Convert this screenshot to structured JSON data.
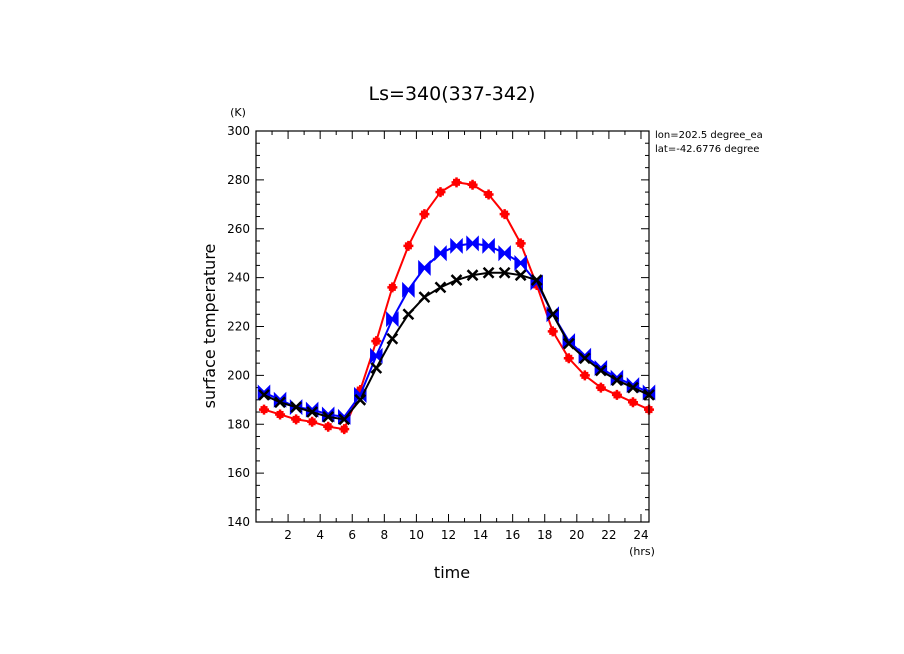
{
  "chart_data": {
    "type": "line",
    "title": "Ls=340(337-342)",
    "xlabel": "time",
    "xunit": "(hrs)",
    "ylabel": "surface temperature",
    "yunit": "(K)",
    "xlim": [
      0,
      24.5
    ],
    "ylim": [
      140,
      300
    ],
    "xticks": [
      2,
      4,
      6,
      8,
      10,
      12,
      14,
      16,
      18,
      20,
      22,
      24
    ],
    "yticks": [
      140,
      160,
      180,
      200,
      220,
      240,
      260,
      280,
      300
    ],
    "annotations": [
      "lon=202.5 degree_ea",
      "lat=-42.6776 degree"
    ],
    "grid": false,
    "x": [
      0.5,
      1.5,
      2.5,
      3.5,
      4.5,
      5.5,
      6.5,
      7.5,
      8.5,
      9.5,
      10.5,
      11.5,
      12.5,
      13.5,
      14.5,
      15.5,
      16.5,
      17.5,
      18.5,
      19.5,
      20.5,
      21.5,
      22.5,
      23.5,
      24.5
    ],
    "series": [
      {
        "color": "#ff0000",
        "marker": "plus",
        "values": [
          186,
          184,
          182,
          181,
          179,
          178,
          194,
          214,
          236,
          253,
          266,
          275,
          279,
          278,
          274,
          266,
          254,
          237,
          218,
          207,
          200,
          195,
          192,
          189,
          186
        ]
      },
      {
        "color": "#0000ff",
        "marker": "bowtie",
        "values": [
          193,
          190,
          187,
          186,
          184,
          183,
          192,
          208,
          223,
          235,
          244,
          250,
          253,
          254,
          253,
          250,
          246,
          238,
          225,
          214,
          208,
          203,
          199,
          196,
          193
        ]
      },
      {
        "color": "#000000",
        "marker": "x",
        "values": [
          192,
          189,
          187,
          185,
          183,
          182,
          190,
          203,
          215,
          225,
          232,
          236,
          239,
          241,
          242,
          242,
          241,
          239,
          225,
          213,
          207,
          202,
          198,
          195,
          192
        ]
      }
    ]
  }
}
